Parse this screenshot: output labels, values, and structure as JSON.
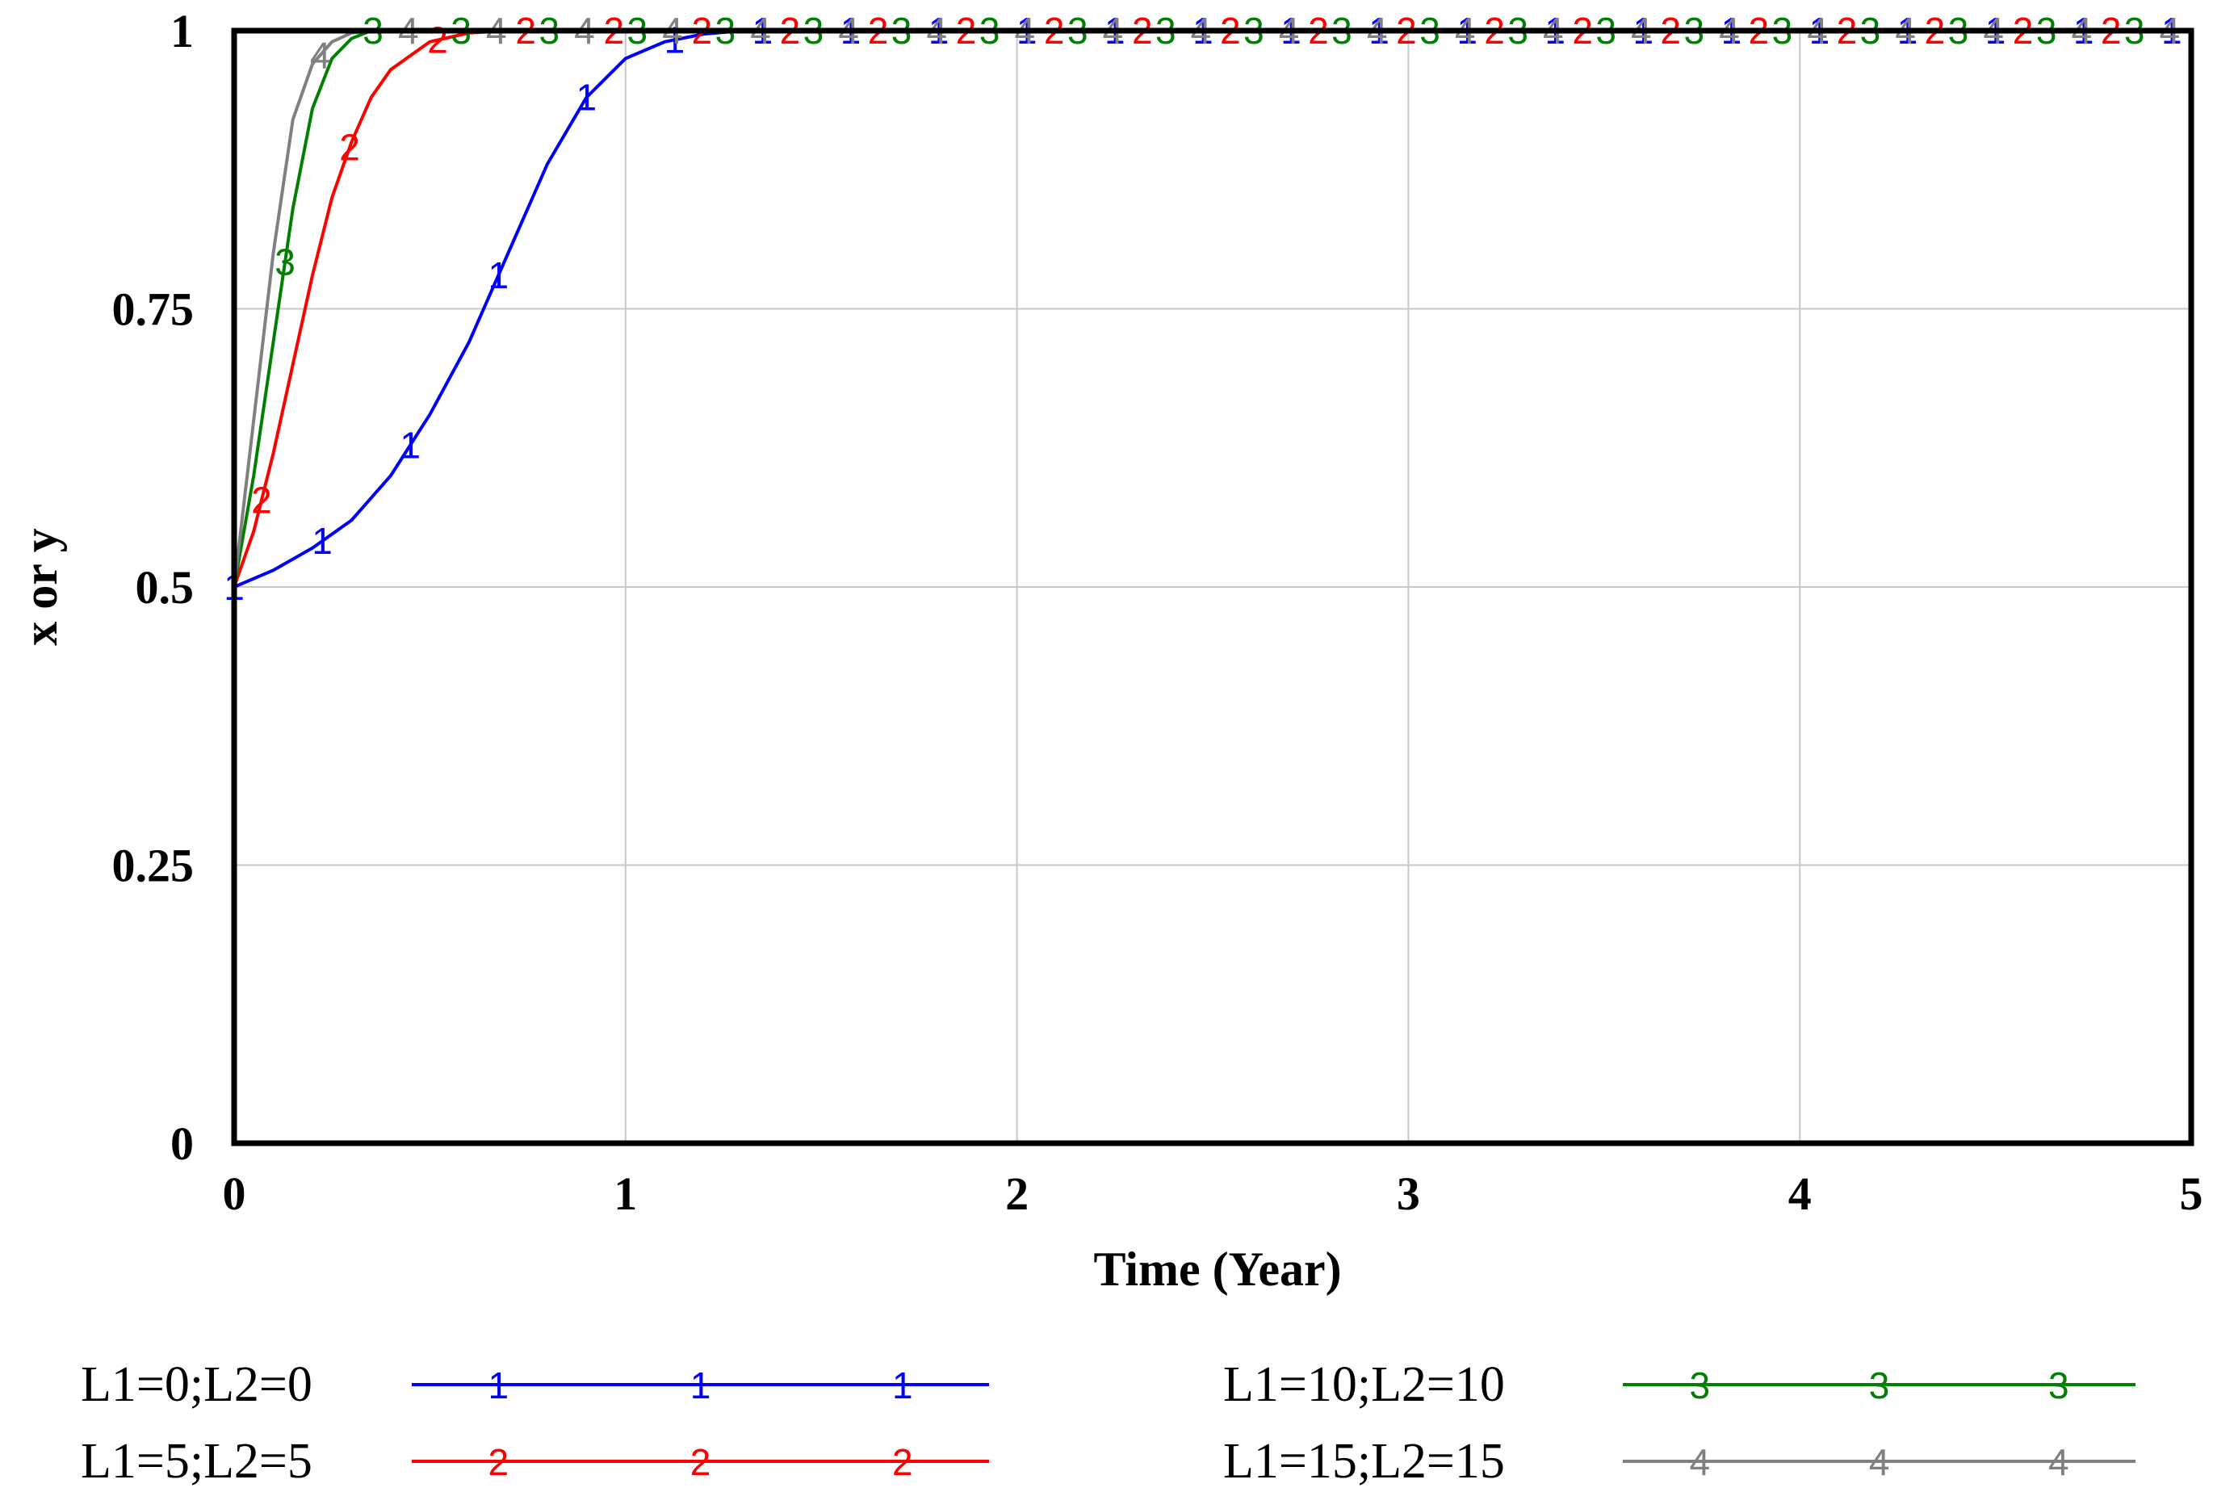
{
  "chart_data": {
    "type": "line",
    "title": "",
    "xlabel": "Time (Year)",
    "ylabel": "x or y",
    "xlim": [
      0,
      5
    ],
    "ylim": [
      0,
      1
    ],
    "xticks": [
      "0",
      "1",
      "2",
      "3",
      "4",
      "5"
    ],
    "yticks": [
      "0",
      "0.25",
      "0.5",
      "0.75",
      "1"
    ],
    "grid": true,
    "legend_position": "bottom",
    "series": [
      {
        "name": "L1=0;L2=0",
        "marker": "1",
        "color": "#0000ff",
        "x": [
          0,
          0.1,
          0.2,
          0.3,
          0.4,
          0.5,
          0.6,
          0.7,
          0.8,
          0.9,
          1.0,
          1.1,
          1.2,
          1.3,
          1.4,
          5
        ],
        "y": [
          0.5,
          0.515,
          0.535,
          0.56,
          0.6,
          0.655,
          0.72,
          0.8,
          0.88,
          0.94,
          0.975,
          0.99,
          0.997,
          1.0,
          1.0,
          1.0
        ]
      },
      {
        "name": "L1=5;L2=5",
        "marker": "2",
        "color": "#ff0000",
        "x": [
          0,
          0.05,
          0.1,
          0.15,
          0.2,
          0.25,
          0.3,
          0.35,
          0.4,
          0.5,
          0.6,
          0.7,
          5
        ],
        "y": [
          0.5,
          0.55,
          0.62,
          0.7,
          0.78,
          0.85,
          0.9,
          0.94,
          0.965,
          0.99,
          0.998,
          1.0,
          1.0
        ]
      },
      {
        "name": "L1=10;L2=10",
        "marker": "3",
        "color": "#008000",
        "x": [
          0,
          0.05,
          0.1,
          0.15,
          0.2,
          0.25,
          0.3,
          0.35,
          0.4,
          5
        ],
        "y": [
          0.5,
          0.6,
          0.72,
          0.84,
          0.93,
          0.975,
          0.993,
          1.0,
          1.0,
          1.0
        ]
      },
      {
        "name": "L1=15;L2=15",
        "marker": "4",
        "color": "#808080",
        "x": [
          0,
          0.05,
          0.1,
          0.15,
          0.2,
          0.25,
          0.3,
          0.35,
          5
        ],
        "y": [
          0.5,
          0.65,
          0.8,
          0.92,
          0.97,
          0.99,
          0.998,
          1.0,
          1.0
        ]
      }
    ]
  }
}
